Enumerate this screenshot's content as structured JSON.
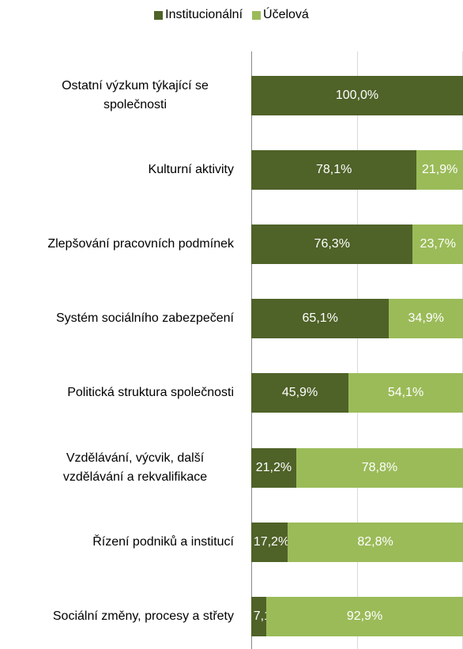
{
  "chart_data": {
    "type": "stacked-bar-horizontal",
    "categories": [
      "Ostatní výzkum týkající se společnosti",
      "Kulturní aktivity",
      "Zlepšování pracovních podmínek",
      "Systém sociálního zabezpečení",
      "Politická struktura společnosti",
      "Vzdělávání, výcvik, další vzdělávání a rekvalifikace",
      "Řízení podniků a institucí",
      "Sociální změny, procesy a střety"
    ],
    "series": [
      {
        "name": "Institucionální",
        "color": "#4f6228",
        "values": [
          100,
          78.1,
          76.3,
          65.1,
          45.9,
          21.2,
          17.2,
          7.1
        ],
        "value_labels": [
          "100,0%",
          "78,1%",
          "76,3%",
          "65,1%",
          "45,9%",
          "21,2%",
          "17,2%",
          "7,1%"
        ]
      },
      {
        "name": "Účelová",
        "color": "#9bbb59",
        "values": [
          0,
          21.9,
          23.7,
          34.9,
          54.1,
          78.8,
          82.8,
          92.9
        ],
        "value_labels": [
          null,
          "21,9%",
          "23,7%",
          "34,9%",
          "54,1%",
          "78,8%",
          "82,8%",
          "92,9%"
        ]
      }
    ],
    "xlim": [
      0,
      100
    ],
    "xticks": [
      0,
      50,
      100
    ],
    "grid": true,
    "legend": "top"
  }
}
